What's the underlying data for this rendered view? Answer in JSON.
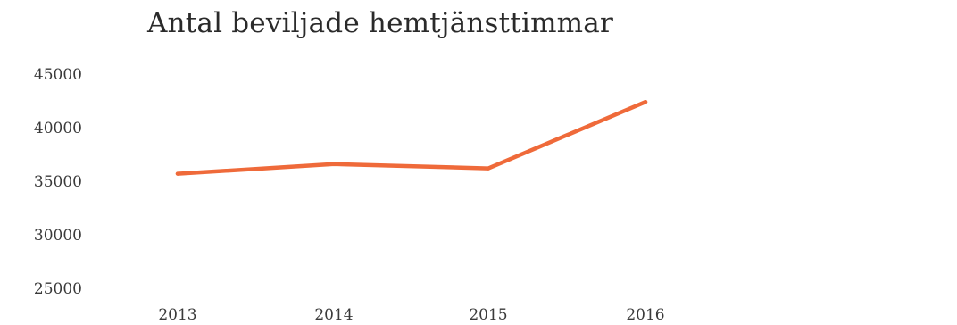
{
  "chart_data": {
    "type": "line",
    "title": "Antal beviljade hemtjänsttimmar",
    "xlabel": "",
    "ylabel": "",
    "categories": [
      "2013",
      "2014",
      "2015",
      "2016"
    ],
    "y_ticks": [
      "45000",
      "40000",
      "35000",
      "30000",
      "25000"
    ],
    "ylim": [
      25000,
      45000
    ],
    "grid": false,
    "series": [
      {
        "values": [
          35700,
          36600,
          36200,
          42400
        ]
      }
    ],
    "colors": {
      "line": "#ef6a3a",
      "text": "#3a3a3a"
    }
  }
}
